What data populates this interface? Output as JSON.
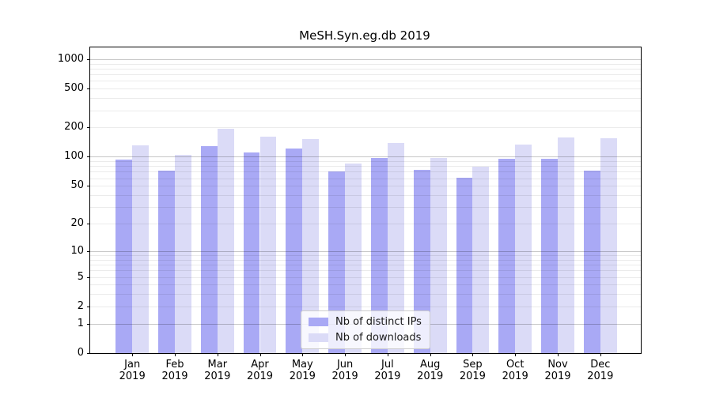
{
  "figure": {
    "title": "MeSH.Syn.eg.db 2019"
  },
  "chart_data": {
    "type": "bar",
    "title": "MeSH.Syn.eg.db 2019",
    "categories": [
      "Jan",
      "Feb",
      "Mar",
      "Apr",
      "May",
      "Jun",
      "Jul",
      "Aug",
      "Sep",
      "Oct",
      "Nov",
      "Dec"
    ],
    "year": "2019",
    "series": [
      {
        "name": "Nb of distinct IPs",
        "color": "#a9a9f5",
        "values": [
          93,
          72,
          128,
          111,
          121,
          71,
          98,
          73,
          61,
          95,
          96,
          72
        ]
      },
      {
        "name": "Nb of downloads",
        "color": "#dbdbf7",
        "values": [
          130,
          105,
          195,
          160,
          152,
          85,
          138,
          97,
          79,
          133,
          158,
          156
        ]
      }
    ],
    "y_axis": {
      "scale": "log1p",
      "ticks": [
        0,
        1,
        2,
        5,
        10,
        20,
        50,
        100,
        200,
        500,
        1000
      ],
      "major_gridlines": [
        1,
        10,
        100,
        1000
      ],
      "minor_gridlines": [
        2,
        3,
        4,
        5,
        6,
        7,
        8,
        9,
        20,
        30,
        40,
        50,
        60,
        70,
        80,
        90,
        200,
        300,
        400,
        500,
        600,
        700,
        800,
        900
      ],
      "min": 0,
      "max": 1000
    },
    "xlabel": "",
    "ylabel": "",
    "grid": true,
    "legend_position": "lower center"
  },
  "colors": {
    "bar_ips": "#a9a9f5",
    "bar_downloads": "#dbdbf7",
    "grid_minor": "rgba(0,0,0,0.08)",
    "grid_major": "rgba(0,0,0,0.22)",
    "axis": "#000000",
    "legend_border": "#cccccc",
    "legend_background": "rgba(255,255,255,0.8)"
  }
}
